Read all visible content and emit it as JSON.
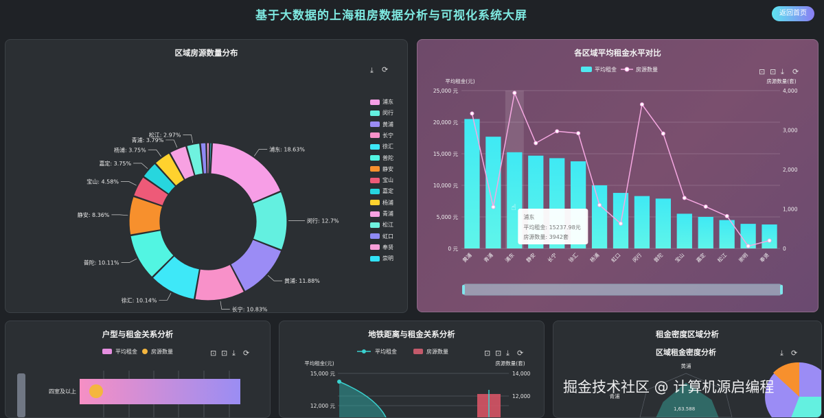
{
  "header": {
    "title": "基于大数据的上海租房数据分析与可视化系统大屏",
    "home_button": "返回首页"
  },
  "charts": {
    "district_count": {
      "title": "区域房源数量分布",
      "chart_data": {
        "type": "pie",
        "labels": [
          "浦东",
          "闵行",
          "黄浦",
          "长宁",
          "徐汇",
          "普陀",
          "静安",
          "宝山",
          "嘉定",
          "杨浦",
          "青浦",
          "松江",
          "虹口",
          "奉贤",
          "崇明"
        ],
        "values": [
          18.63,
          12.7,
          11.88,
          10.83,
          10.14,
          10.11,
          8.36,
          4.58,
          3.75,
          3.75,
          3.79,
          2.97,
          1.31,
          0.7,
          0.5
        ],
        "colors": [
          "#f79ee6",
          "#63f0e0",
          "#9b8cf5",
          "#f891c9",
          "#3ee8f8",
          "#52f5e2",
          "#f7902d",
          "#ee5a78",
          "#27d6de",
          "#ffd22e",
          "#f7a1e2",
          "#6ff2df",
          "#8f8af5",
          "#f89ed8",
          "#31e2f6"
        ],
        "label_texts": [
          "浦东: 18.63%",
          "闵行: 12.7%",
          "黄浦: 11.88%",
          "长宁: 10.83%",
          "徐汇: 10.14%",
          "普陀: 10.11%",
          "静安: 8.36%",
          "宝山: 4.58%",
          "嘉定: 3.75%",
          "杨浦: 3.75%",
          "青浦: 3.79%",
          "松江: 2.97%"
        ]
      }
    },
    "rent_compare": {
      "title": "各区域平均租金水平对比",
      "chart_data": {
        "type": "bar",
        "categories": [
          "黄浦",
          "青浦",
          "浦东",
          "静安",
          "长宁",
          "徐汇",
          "杨浦",
          "虹口",
          "闵行",
          "普陀",
          "宝山",
          "嘉定",
          "松江",
          "崇明",
          "奉贤"
        ],
        "series": [
          {
            "name": "平均租金",
            "values": [
              20500,
              17700,
              15237.98,
              14700,
              14300,
              13800,
              10000,
              8800,
              8300,
              7900,
              5500,
              5000,
              4500,
              3900,
              3800
            ]
          },
          {
            "name": "房源数量",
            "values": [
              3420,
              1050,
              3942,
              2670,
              2970,
              2920,
              1100,
              630,
              3650,
              2910,
              1280,
              1060,
              820,
              60,
              200
            ]
          }
        ],
        "ylabel": "平均租金(元)",
        "ylabel_right": "房源数量(套)",
        "ylim": [
          0,
          25000
        ],
        "ylim_right": [
          0,
          4000
        ],
        "y_ticks": [
          "0 元",
          "5,000 元",
          "10,000 元",
          "15,000 元",
          "20,000 元",
          "25,000 元"
        ],
        "y2_ticks": [
          "0",
          "1,000",
          "2,000",
          "3,000",
          "4,000"
        ],
        "tooltip": {
          "name": "浦东",
          "rent": "平均租金: 15237.98元",
          "count": "房源数量: 3942套"
        }
      }
    },
    "layout_rent": {
      "title": "户型与租金关系分析",
      "legend": [
        "平均租金",
        "房源数量"
      ],
      "row_label": "四室及以上"
    },
    "subway_rent": {
      "title": "地铁距离与租金关系分析",
      "legend": [
        "平均租金",
        "房源数量"
      ],
      "ylabel": "平均租金(元)",
      "ylabel_right": "房源数量(套)",
      "y_ticks": [
        "15,000 元",
        "12,000 元"
      ],
      "y2_ticks": [
        "14,000",
        "12,000"
      ]
    },
    "density": {
      "title": "租金密度区域分析",
      "subtitle": "区域租金密度分析",
      "labels": [
        "黄浦",
        "青浦"
      ],
      "partial_label": "1,63.588"
    }
  },
  "watermark": "掘金技术社区 @ 计算机源启编程",
  "icons": {
    "download": "download-icon",
    "refresh": "refresh-icon",
    "zoom": "zoom-icon",
    "zoom_reset": "zoom-reset-icon"
  }
}
